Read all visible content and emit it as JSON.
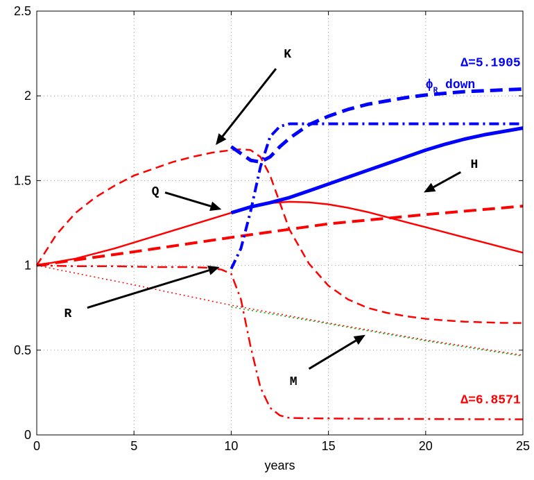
{
  "chart_data": {
    "type": "line",
    "xlabel": "years",
    "ylabel": "",
    "xlim": [
      0,
      25
    ],
    "ylim": [
      0,
      2.5
    ],
    "x_ticks": [
      0,
      5,
      10,
      15,
      20,
      25
    ],
    "y_ticks": [
      0,
      0.5,
      1,
      1.5,
      2,
      2.5
    ],
    "grid": true,
    "annotations": [
      {
        "text": "Δ=5.1905",
        "color": "#0000ff",
        "x": 21.8,
        "y": 2.2
      },
      {
        "text": "ϕ",
        "sub": "R",
        "suffix": " down",
        "color": "#0000ff",
        "x": 20.0,
        "y": 2.07
      },
      {
        "text": "Δ=6.8571",
        "color": "#ff0000",
        "x": 21.8,
        "y": 0.21
      }
    ],
    "arrows": [
      {
        "label": "K",
        "label_x": 12.9,
        "label_y": 2.25,
        "from_x": 12.3,
        "from_y": 2.16,
        "to_x": 9.2,
        "to_y": 1.71
      },
      {
        "label": "Q",
        "label_x": 6.1,
        "label_y": 1.44,
        "from_x": 6.6,
        "from_y": 1.43,
        "to_x": 9.5,
        "to_y": 1.33
      },
      {
        "label": "H",
        "label_x": 22.5,
        "label_y": 1.6,
        "from_x": 21.8,
        "from_y": 1.55,
        "to_x": 19.9,
        "to_y": 1.43
      },
      {
        "label": "R",
        "label_x": 1.6,
        "label_y": 0.72,
        "from_x": 2.6,
        "from_y": 0.75,
        "to_x": 9.4,
        "to_y": 0.99
      },
      {
        "label": "M",
        "label_x": 13.2,
        "label_y": 0.32,
        "from_x": 14.0,
        "from_y": 0.39,
        "to_x": 16.9,
        "to_y": 0.59
      }
    ],
    "series": [
      {
        "color": "#ff0000",
        "style": "dashed",
        "width": 2.5,
        "x": [
          0,
          1,
          2,
          3,
          4,
          5,
          6,
          7,
          8,
          9,
          10,
          10.5,
          11,
          11.5,
          12,
          12.5,
          13,
          14,
          15,
          16,
          17,
          18,
          19,
          20,
          21,
          22,
          23,
          24,
          25
        ],
        "y": [
          1.0,
          1.18,
          1.31,
          1.4,
          1.47,
          1.53,
          1.57,
          1.61,
          1.64,
          1.665,
          1.68,
          1.685,
          1.68,
          1.64,
          1.53,
          1.37,
          1.21,
          1.01,
          0.88,
          0.8,
          0.75,
          0.72,
          0.7,
          0.685,
          0.675,
          0.668,
          0.664,
          0.661,
          0.66
        ]
      },
      {
        "color": "#ff0000",
        "style": "solid",
        "width": 2.5,
        "x": [
          0,
          2,
          4,
          6,
          8,
          10,
          11,
          12,
          13,
          14,
          15,
          16,
          17,
          18,
          19,
          20,
          21,
          22,
          23,
          24,
          25
        ],
        "y": [
          1.0,
          1.04,
          1.1,
          1.17,
          1.24,
          1.31,
          1.345,
          1.368,
          1.375,
          1.372,
          1.36,
          1.34,
          1.315,
          1.285,
          1.255,
          1.225,
          1.195,
          1.165,
          1.135,
          1.105,
          1.075
        ]
      },
      {
        "color": "#0000ff",
        "style": "solid",
        "width": 5,
        "x": [
          10,
          11,
          12,
          13,
          14,
          15,
          16,
          17,
          18,
          19,
          20,
          21,
          22,
          23,
          24,
          25
        ],
        "y": [
          1.31,
          1.345,
          1.37,
          1.4,
          1.44,
          1.48,
          1.52,
          1.56,
          1.6,
          1.64,
          1.68,
          1.715,
          1.745,
          1.77,
          1.79,
          1.81
        ]
      },
      {
        "color": "#ff0000",
        "style": "dashed-thick",
        "width": 4,
        "x": [
          0,
          5,
          10,
          15,
          20,
          25
        ],
        "y": [
          1.0,
          1.08,
          1.165,
          1.245,
          1.3,
          1.35
        ]
      },
      {
        "color": "#0000ff",
        "style": "dashed-thick",
        "width": 5,
        "x": [
          10,
          10.5,
          11,
          11.5,
          12,
          12.5,
          13,
          13.5,
          14,
          15,
          16,
          17,
          18,
          19,
          20,
          21,
          22,
          23,
          24,
          25
        ],
        "y": [
          1.7,
          1.66,
          1.62,
          1.61,
          1.64,
          1.7,
          1.75,
          1.79,
          1.83,
          1.88,
          1.92,
          1.95,
          1.97,
          1.99,
          2.005,
          2.015,
          2.025,
          2.03,
          2.035,
          2.04
        ]
      },
      {
        "color": "#0000ff",
        "style": "dashdot",
        "width": 4,
        "x": [
          10,
          10.5,
          11,
          11.5,
          12,
          12.5,
          13,
          14,
          15,
          16,
          17,
          18,
          19,
          20,
          21,
          22,
          23,
          24,
          25
        ],
        "y": [
          0.98,
          1.1,
          1.32,
          1.58,
          1.76,
          1.82,
          1.835,
          1.835,
          1.835,
          1.835,
          1.835,
          1.835,
          1.835,
          1.835,
          1.835,
          1.835,
          1.835,
          1.835,
          1.835
        ]
      },
      {
        "color": "#ff0000",
        "style": "dashdot",
        "width": 2.5,
        "x": [
          0,
          2,
          4,
          6,
          8,
          9,
          9.5,
          10,
          10.5,
          11,
          11.5,
          12,
          12.5,
          13,
          14,
          15,
          16,
          18,
          20,
          22,
          25
        ],
        "y": [
          1.0,
          0.995,
          0.995,
          0.99,
          0.99,
          0.985,
          0.975,
          0.95,
          0.8,
          0.52,
          0.28,
          0.16,
          0.115,
          0.1,
          0.098,
          0.097,
          0.096,
          0.095,
          0.094,
          0.093,
          0.092
        ]
      },
      {
        "color": "#ff0000",
        "style": "dotted",
        "width": 1.5,
        "x": [
          0,
          5,
          10,
          15,
          20,
          25
        ],
        "y": [
          1.0,
          0.885,
          0.765,
          0.66,
          0.56,
          0.47
        ]
      },
      {
        "color": "#00aa00",
        "style": "dotted",
        "width": 1.5,
        "x": [
          10,
          15,
          20,
          25
        ],
        "y": [
          0.755,
          0.655,
          0.555,
          0.465
        ]
      }
    ]
  }
}
